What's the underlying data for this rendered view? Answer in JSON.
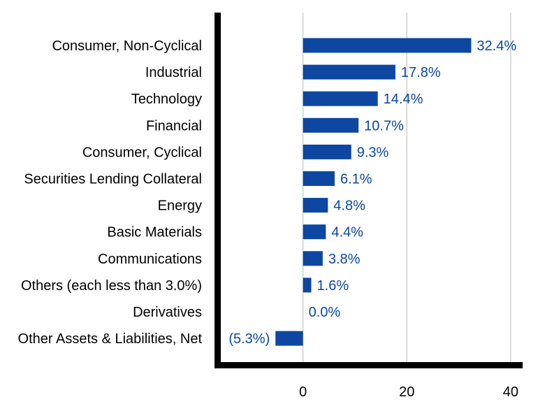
{
  "chart_data": {
    "type": "bar",
    "orientation": "horizontal",
    "title": "",
    "xlabel": "",
    "ylabel": "",
    "categories": [
      "Consumer, Non-Cyclical",
      "Industrial",
      "Technology",
      "Financial",
      "Consumer, Cyclical",
      "Securities Lending Collateral",
      "Energy",
      "Basic Materials",
      "Communications",
      "Others (each less than 3.0%)",
      "Derivatives",
      "Other Assets & Liabilities, Net"
    ],
    "values": [
      32.4,
      17.8,
      14.4,
      10.7,
      9.3,
      6.1,
      4.8,
      4.4,
      3.8,
      1.6,
      0.0,
      -5.3
    ],
    "value_labels": [
      "32.4%",
      "17.8%",
      "14.4%",
      "10.7%",
      "9.3%",
      "6.1%",
      "4.8%",
      "4.4%",
      "3.8%",
      "1.6%",
      "0.0%",
      "(5.3%)"
    ],
    "xlim": [
      -16.5,
      42.3
    ],
    "xticks": [
      0,
      20,
      40
    ],
    "xtick_labels": [
      "0",
      "20",
      "40"
    ],
    "grid": true,
    "legend": "none",
    "colors": {
      "bar": "#0d47a1",
      "value_label": "#0d47a1",
      "grid": "#d0d0d0",
      "axis": "#000000"
    }
  }
}
